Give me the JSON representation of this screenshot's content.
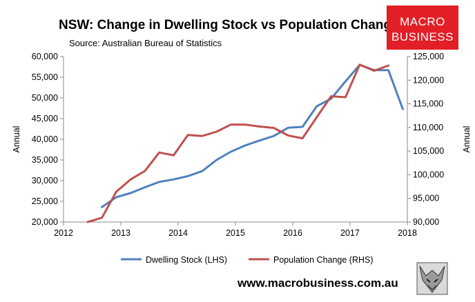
{
  "colors": {
    "dwelling": "#4f81bd",
    "population": "#c0504d",
    "axis": "#888888",
    "logo_bg": "#e21f26"
  },
  "website": "www.macrobusiness.com.au",
  "logo": {
    "line1": "MACRO",
    "line2": "BUSINESS"
  },
  "chart_data": {
    "type": "line",
    "title": "NSW: Change in Dwelling Stock vs Population Change",
    "subtitle": "Source: Australian Bureau of Statistics",
    "xlabel": "",
    "ylabel": "Annual",
    "y2label": "Annual",
    "xlim": [
      2012,
      2018
    ],
    "ylim": [
      20000,
      60000
    ],
    "y2lim": [
      90000,
      125000
    ],
    "x_ticks": [
      "2012",
      "2013",
      "2014",
      "2015",
      "2016",
      "2017",
      "2018"
    ],
    "y_ticks": [
      "20,000",
      "25,000",
      "30,000",
      "35,000",
      "40,000",
      "45,000",
      "50,000",
      "55,000",
      "60,000"
    ],
    "y2_ticks": [
      "90,000",
      "95,000",
      "100,000",
      "105,000",
      "110,000",
      "115,000",
      "120,000",
      "125,000"
    ],
    "series": [
      {
        "name": "Dwelling Stock (LHS)",
        "axis": "left",
        "x": [
          2012.67,
          2012.92,
          2013.17,
          2013.42,
          2013.67,
          2013.92,
          2014.17,
          2014.42,
          2014.67,
          2014.92,
          2015.17,
          2015.42,
          2015.67,
          2015.92,
          2016.17,
          2016.42,
          2016.67,
          2016.92,
          2017.17,
          2017.42,
          2017.67,
          2017.92
        ],
        "values": [
          23600,
          26000,
          27000,
          28400,
          29700,
          30300,
          31100,
          32300,
          35000,
          37000,
          38500,
          39700,
          40800,
          42800,
          43000,
          48000,
          49800,
          54000,
          58000,
          56700,
          56700,
          47300
        ]
      },
      {
        "name": "Population Change (RHS)",
        "axis": "right",
        "x": [
          2012.42,
          2012.67,
          2012.92,
          2013.17,
          2013.42,
          2013.67,
          2013.92,
          2014.17,
          2014.42,
          2014.67,
          2014.92,
          2015.17,
          2015.42,
          2015.67,
          2015.92,
          2016.17,
          2016.42,
          2016.67,
          2016.92,
          2017.17,
          2017.42,
          2017.67
        ],
        "values": [
          89500,
          90900,
          96400,
          99000,
          100800,
          104700,
          104100,
          108400,
          108200,
          109100,
          110600,
          110600,
          110200,
          109900,
          108300,
          107700,
          112200,
          116600,
          116400,
          123300,
          122000,
          123100
        ]
      }
    ],
    "legend_position": "bottom"
  }
}
